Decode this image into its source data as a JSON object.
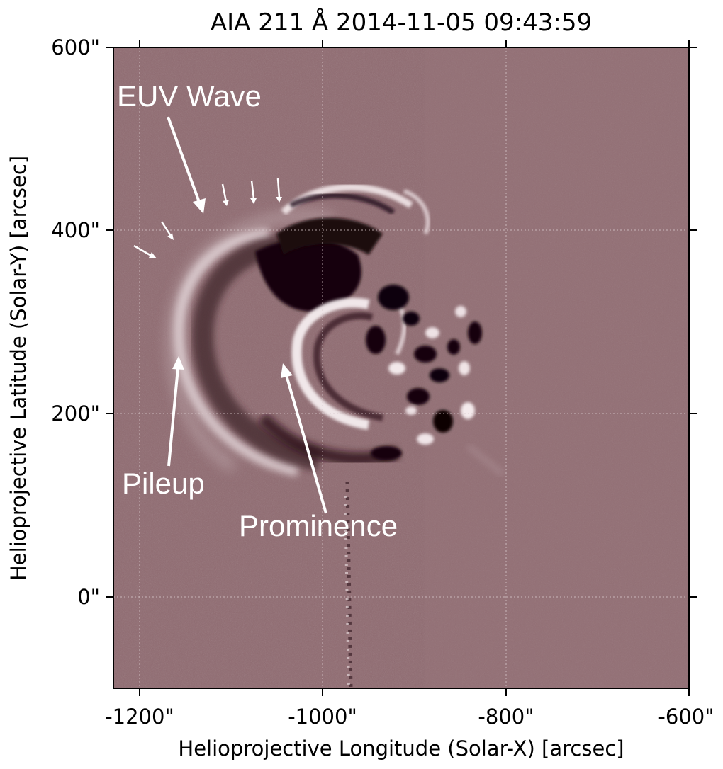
{
  "figure": {
    "title": "AIA 211 Å 2014-11-05 09:43:59",
    "xlabel": "Helioprojective Longitude (Solar-X) [arcsec]",
    "ylabel": "Helioprojective Latitude (Solar-Y) [arcsec]",
    "x_range_arcsec": [
      -1230,
      -600
    ],
    "y_range_arcsec": [
      -100,
      600
    ],
    "x_ticks": [
      {
        "value": -1200,
        "label": "-1200\""
      },
      {
        "value": -1000,
        "label": "-1000\""
      },
      {
        "value": -800,
        "label": "-800\""
      },
      {
        "value": -600,
        "label": "-600\""
      }
    ],
    "y_ticks": [
      {
        "value": 0,
        "label": "0\""
      },
      {
        "value": 200,
        "label": "200\""
      },
      {
        "value": 400,
        "label": "400\""
      },
      {
        "value": 600,
        "label": "600\""
      }
    ],
    "grid": "dotted"
  },
  "annotations": {
    "euv_wave": "EUV Wave",
    "pileup": "Pileup",
    "prominence": "Prominence"
  },
  "colors": {
    "background": "#8f6a70",
    "dark_feature": "#1a070c",
    "bright_feature": "#f4eaec",
    "annotation": "#ffffff"
  }
}
